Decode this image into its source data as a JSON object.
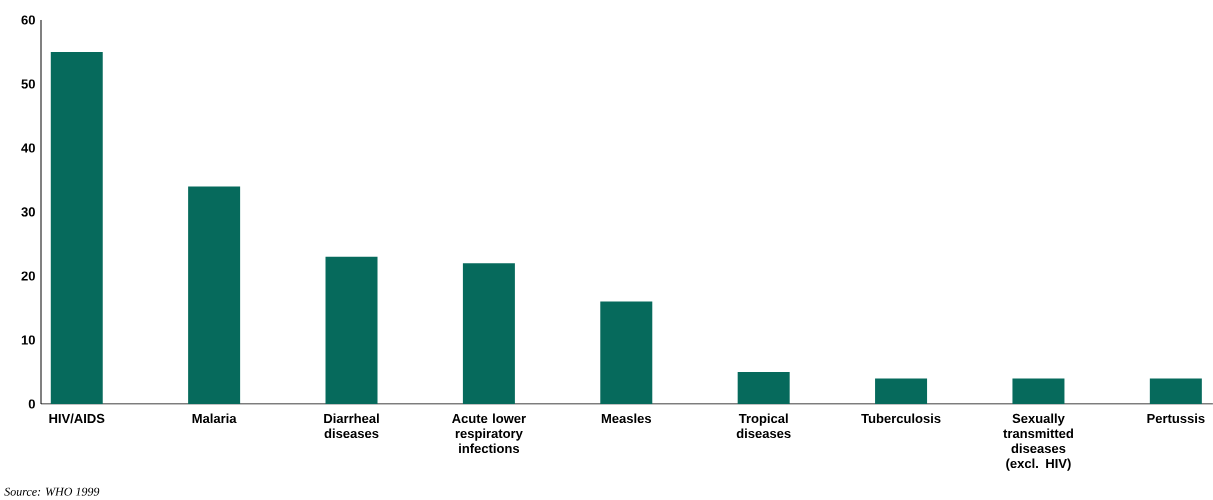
{
  "chart_data": {
    "type": "bar",
    "categories": [
      "HIV/AIDS",
      "Malaria",
      "Diarrheal diseases",
      "Acute lower respiratory infections",
      "Measles",
      "Tropical diseases",
      "Tuberculosis",
      "Sexually transmitted diseases (excl. HIV)",
      "Pertussis"
    ],
    "values": [
      55,
      34,
      23,
      22,
      16,
      5,
      4,
      4,
      4
    ],
    "color": "#066a5c",
    "ylim": [
      0,
      60
    ],
    "yticks": [
      0,
      10,
      20,
      30,
      40,
      50,
      60
    ],
    "grid": false,
    "annotations": [
      "Source: WHO 1999"
    ]
  }
}
